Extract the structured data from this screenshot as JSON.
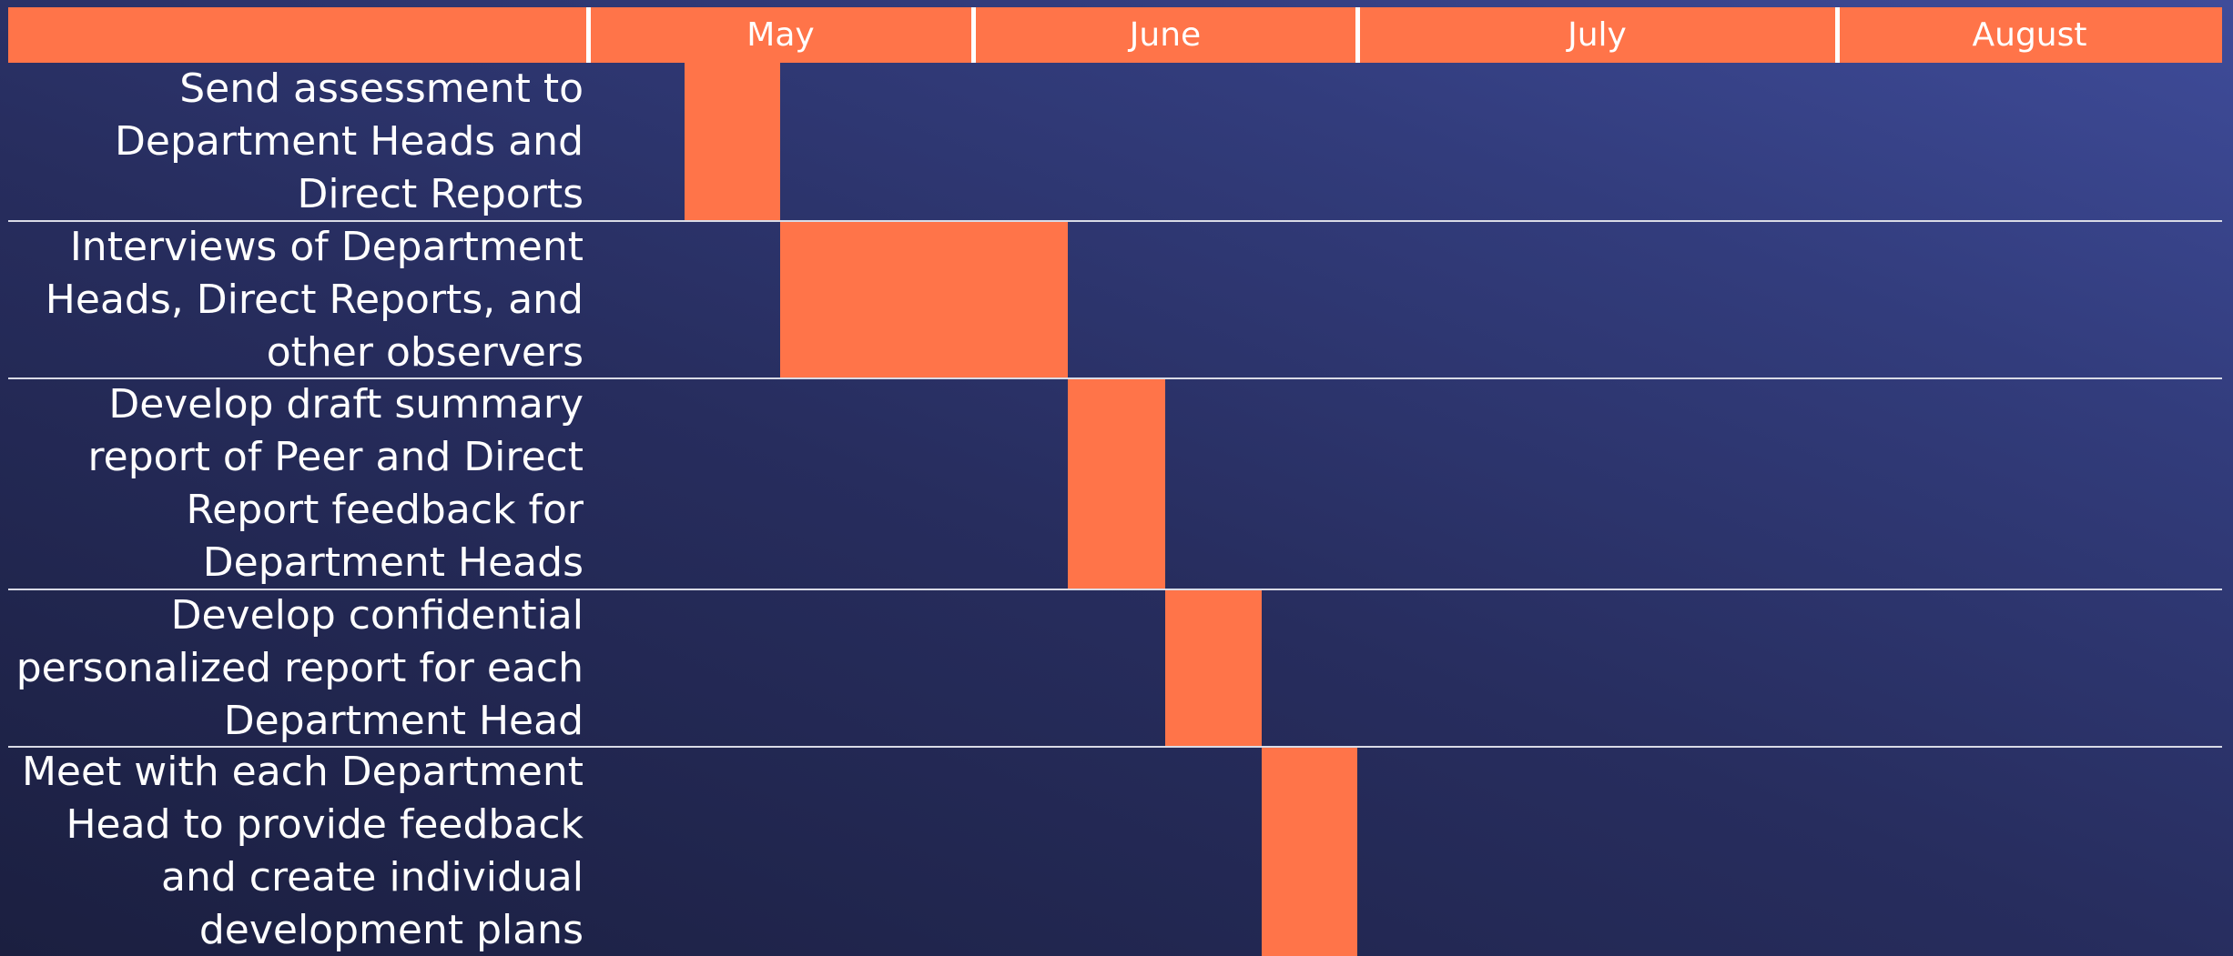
{
  "months": [
    "May",
    "June",
    "July",
    "August"
  ],
  "tasks": [
    "Send assessment to Department Heads and Direct Reports",
    "Interviews of Department Heads, Direct Reports, and other observers",
    "Develop draft summary report of Peer and Direct Report feedback for Department Heads",
    "Develop confidential personalized report for each Department Head",
    "Meet with each Department Head to provide feedback and create individual development plans"
  ]
}
